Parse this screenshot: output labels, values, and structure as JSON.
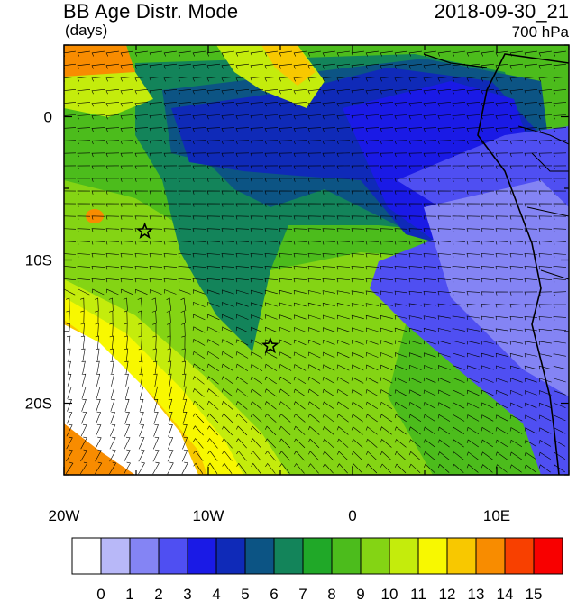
{
  "header": {
    "title": "BB Age Distr. Mode",
    "subtitle": "(days)",
    "datetime": "2018-09-30_21",
    "level": "700 hPa"
  },
  "map": {
    "lon_range": [
      -20,
      15
    ],
    "lat_range": [
      -25,
      5
    ],
    "x_ticks": [
      {
        "value": -20,
        "label": "20W"
      },
      {
        "value": -10,
        "label": "10W"
      },
      {
        "value": 0,
        "label": "0"
      },
      {
        "value": 10,
        "label": "10E"
      }
    ],
    "y_ticks": [
      {
        "value": 0,
        "label": "0"
      },
      {
        "value": -10,
        "label": "10S"
      },
      {
        "value": -20,
        "label": "20S"
      }
    ],
    "markers": [
      {
        "name": "star-marker-ascension-area",
        "lon": -14.4,
        "lat": -8.0
      },
      {
        "name": "star-marker-st-helena-area",
        "lon": -5.7,
        "lat": -16.0
      }
    ]
  },
  "colorbar": {
    "labels": [
      "0",
      "1",
      "2",
      "3",
      "4",
      "5",
      "6",
      "7",
      "8",
      "9",
      "10",
      "11",
      "12",
      "13",
      "14",
      "15"
    ],
    "colors": [
      "#ffffff",
      "#b8b8f8",
      "#8484f4",
      "#4f4ff2",
      "#1a1ae6",
      "#0f2ab8",
      "#0c5484",
      "#13845a",
      "#20a828",
      "#4cbc1c",
      "#84d414",
      "#c4ec0c",
      "#f8f800",
      "#f8c800",
      "#f88c00",
      "#f84000",
      "#f80000"
    ]
  }
}
